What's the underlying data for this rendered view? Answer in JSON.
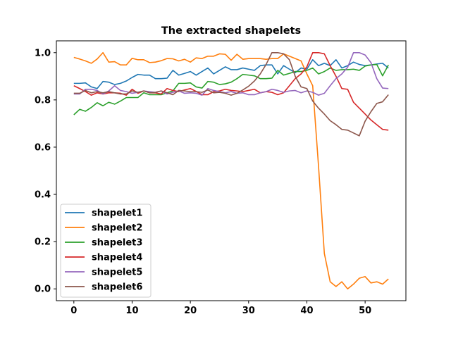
{
  "chart_data": {
    "type": "line",
    "title": "The extracted shapelets",
    "xlabel": "",
    "ylabel": "",
    "xlim": [
      -3.0,
      57.0
    ],
    "ylim": [
      -0.05,
      1.05
    ],
    "xticks": [
      0,
      10,
      20,
      30,
      40,
      50
    ],
    "yticks": [
      0.0,
      0.2,
      0.4,
      0.6,
      0.8,
      1.0
    ],
    "ytick_labels": [
      "0.0",
      "0.2",
      "0.4",
      "0.6",
      "0.8",
      "1.0"
    ],
    "grid": false,
    "legend_position": "lower-left",
    "x": [
      0,
      1,
      2,
      3,
      4,
      5,
      6,
      7,
      8,
      9,
      10,
      11,
      12,
      13,
      14,
      15,
      16,
      17,
      18,
      19,
      20,
      21,
      22,
      23,
      24,
      25,
      26,
      27,
      28,
      29,
      30,
      31,
      32,
      33,
      34,
      35,
      36,
      37,
      38,
      39,
      40,
      41,
      42,
      43,
      44,
      45,
      46,
      47,
      48,
      49,
      50,
      51,
      52,
      53,
      54
    ],
    "series": [
      {
        "name": "shapelet1",
        "color": "#1f77b4",
        "values": [
          0.87,
          0.87,
          0.872,
          0.855,
          0.848,
          0.878,
          0.875,
          0.865,
          0.87,
          0.88,
          0.895,
          0.908,
          0.905,
          0.905,
          0.89,
          0.89,
          0.892,
          0.925,
          0.905,
          0.912,
          0.92,
          0.905,
          0.92,
          0.935,
          0.91,
          0.925,
          0.94,
          0.928,
          0.928,
          0.935,
          0.93,
          0.925,
          0.945,
          0.948,
          0.948,
          0.91,
          0.945,
          0.93,
          0.915,
          0.935,
          0.93,
          0.97,
          0.945,
          0.955,
          0.945,
          0.97,
          0.935,
          0.945,
          0.96,
          0.95,
          0.945,
          0.948,
          0.952,
          0.955,
          0.935
        ]
      },
      {
        "name": "shapelet2",
        "color": "#ff7f0e",
        "values": [
          0.98,
          0.973,
          0.965,
          0.955,
          0.973,
          1.0,
          0.96,
          0.962,
          0.948,
          0.948,
          0.976,
          0.97,
          0.97,
          0.958,
          0.96,
          0.966,
          0.975,
          0.974,
          0.965,
          0.972,
          0.96,
          0.978,
          0.975,
          0.985,
          0.985,
          0.995,
          0.993,
          0.968,
          0.993,
          0.972,
          0.975,
          0.975,
          0.975,
          0.972,
          0.975,
          0.975,
          0.995,
          0.985,
          0.975,
          0.965,
          0.91,
          0.86,
          0.52,
          0.15,
          0.03,
          0.01,
          0.03,
          0.0,
          0.02,
          0.045,
          0.052,
          0.025,
          0.03,
          0.02,
          0.042
        ]
      },
      {
        "name": "shapelet3",
        "color": "#2ca02c",
        "values": [
          0.737,
          0.76,
          0.752,
          0.768,
          0.788,
          0.775,
          0.79,
          0.782,
          0.795,
          0.81,
          0.81,
          0.81,
          0.83,
          0.822,
          0.822,
          0.822,
          0.83,
          0.838,
          0.87,
          0.87,
          0.872,
          0.855,
          0.85,
          0.878,
          0.875,
          0.865,
          0.868,
          0.875,
          0.89,
          0.908,
          0.905,
          0.902,
          0.89,
          0.89,
          0.892,
          0.925,
          0.905,
          0.912,
          0.92,
          0.92,
          0.925,
          0.935,
          0.91,
          0.92,
          0.935,
          0.925,
          0.928,
          0.928,
          0.93,
          0.925,
          0.943,
          0.948,
          0.95,
          0.902,
          0.948
        ]
      },
      {
        "name": "shapelet4",
        "color": "#d62728",
        "values": [
          0.86,
          0.848,
          0.835,
          0.82,
          0.83,
          0.825,
          0.83,
          0.83,
          0.828,
          0.82,
          0.845,
          0.828,
          0.838,
          0.83,
          0.83,
          0.825,
          0.848,
          0.84,
          0.835,
          0.842,
          0.848,
          0.836,
          0.822,
          0.822,
          0.835,
          0.838,
          0.845,
          0.84,
          0.838,
          0.835,
          0.84,
          0.845,
          0.83,
          0.835,
          0.832,
          0.822,
          0.83,
          0.86,
          0.89,
          0.91,
          0.94,
          1.0,
          1.0,
          0.995,
          0.945,
          0.9,
          0.848,
          0.845,
          0.79,
          0.765,
          0.74,
          0.715,
          0.695,
          0.675,
          0.672
        ]
      },
      {
        "name": "shapelet5",
        "color": "#9467bd",
        "values": [
          0.825,
          0.825,
          0.845,
          0.845,
          0.84,
          0.825,
          0.838,
          0.86,
          0.84,
          0.835,
          0.828,
          0.832,
          0.838,
          0.835,
          0.832,
          0.838,
          0.825,
          0.832,
          0.838,
          0.828,
          0.83,
          0.828,
          0.82,
          0.848,
          0.84,
          0.835,
          0.83,
          0.835,
          0.828,
          0.83,
          0.822,
          0.822,
          0.83,
          0.835,
          0.845,
          0.84,
          0.832,
          0.838,
          0.84,
          0.83,
          0.838,
          0.832,
          0.82,
          0.828,
          0.86,
          0.89,
          0.91,
          0.938,
          1.0,
          1.0,
          0.99,
          0.958,
          0.89,
          0.85,
          0.848
        ]
      },
      {
        "name": "shapelet6",
        "color": "#8c564b",
        "values": [
          0.828,
          0.828,
          0.84,
          0.83,
          0.835,
          0.83,
          0.835,
          0.83,
          0.825,
          0.825,
          0.838,
          0.832,
          0.838,
          0.83,
          0.832,
          0.838,
          0.83,
          0.822,
          0.84,
          0.838,
          0.835,
          0.835,
          0.832,
          0.842,
          0.83,
          0.832,
          0.828,
          0.82,
          0.828,
          0.842,
          0.858,
          0.88,
          0.91,
          0.95,
          1.0,
          1.0,
          0.995,
          0.97,
          0.9,
          0.855,
          0.848,
          0.795,
          0.765,
          0.74,
          0.712,
          0.695,
          0.675,
          0.672,
          0.66,
          0.648,
          0.71,
          0.75,
          0.785,
          0.792,
          0.822
        ]
      }
    ]
  }
}
